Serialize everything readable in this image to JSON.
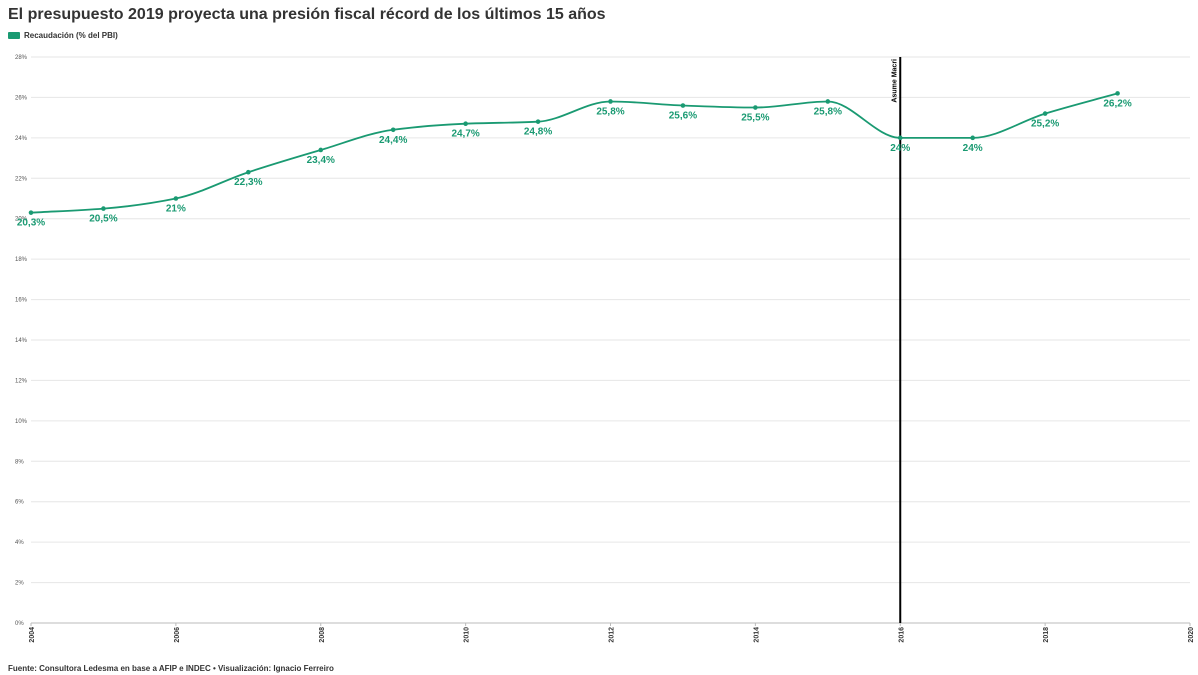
{
  "title": "El presupuesto 2019 proyecta una presión fiscal récord de los últimos 15 años",
  "footer": "Fuente: Consultora Ledesma en base a AFIP e INDEC • Visualización: Ignacio Ferreiro",
  "colors": {
    "series": "#1a9a72",
    "annotation": "#000000",
    "grid": "#e6e6e6",
    "axis_text": "#555555"
  },
  "chart_data": {
    "type": "line",
    "grid": true,
    "legend_position": "top-left",
    "xlim": [
      2004,
      2020
    ],
    "ylim": [
      0,
      28
    ],
    "x_ticks": [
      2004,
      2006,
      2008,
      2010,
      2012,
      2014,
      2016,
      2018,
      2020
    ],
    "y_ticks": [
      0,
      2,
      4,
      6,
      8,
      10,
      12,
      14,
      16,
      18,
      20,
      22,
      24,
      26,
      28
    ],
    "y_tick_suffix": "%",
    "series": [
      {
        "name": "Recaudación (% del PBI)",
        "x": [
          2004,
          2005,
          2006,
          2007,
          2008,
          2009,
          2010,
          2011,
          2012,
          2013,
          2014,
          2015,
          2016,
          2017,
          2018,
          2019
        ],
        "values": [
          20.3,
          20.5,
          21,
          22.3,
          23.4,
          24.4,
          24.7,
          24.8,
          25.8,
          25.6,
          25.5,
          25.8,
          24,
          24,
          25.2,
          26.2
        ],
        "labels": [
          "20,3%",
          "20,5%",
          "21%",
          "22,3%",
          "23,4%",
          "24,4%",
          "24,7%",
          "24,8%",
          "25,8%",
          "25,6%",
          "25,5%",
          "25,8%",
          "24%",
          "24%",
          "25,2%",
          "26,2%"
        ]
      }
    ],
    "annotations": [
      {
        "x": 2016,
        "label": "Asume Macri"
      }
    ]
  }
}
